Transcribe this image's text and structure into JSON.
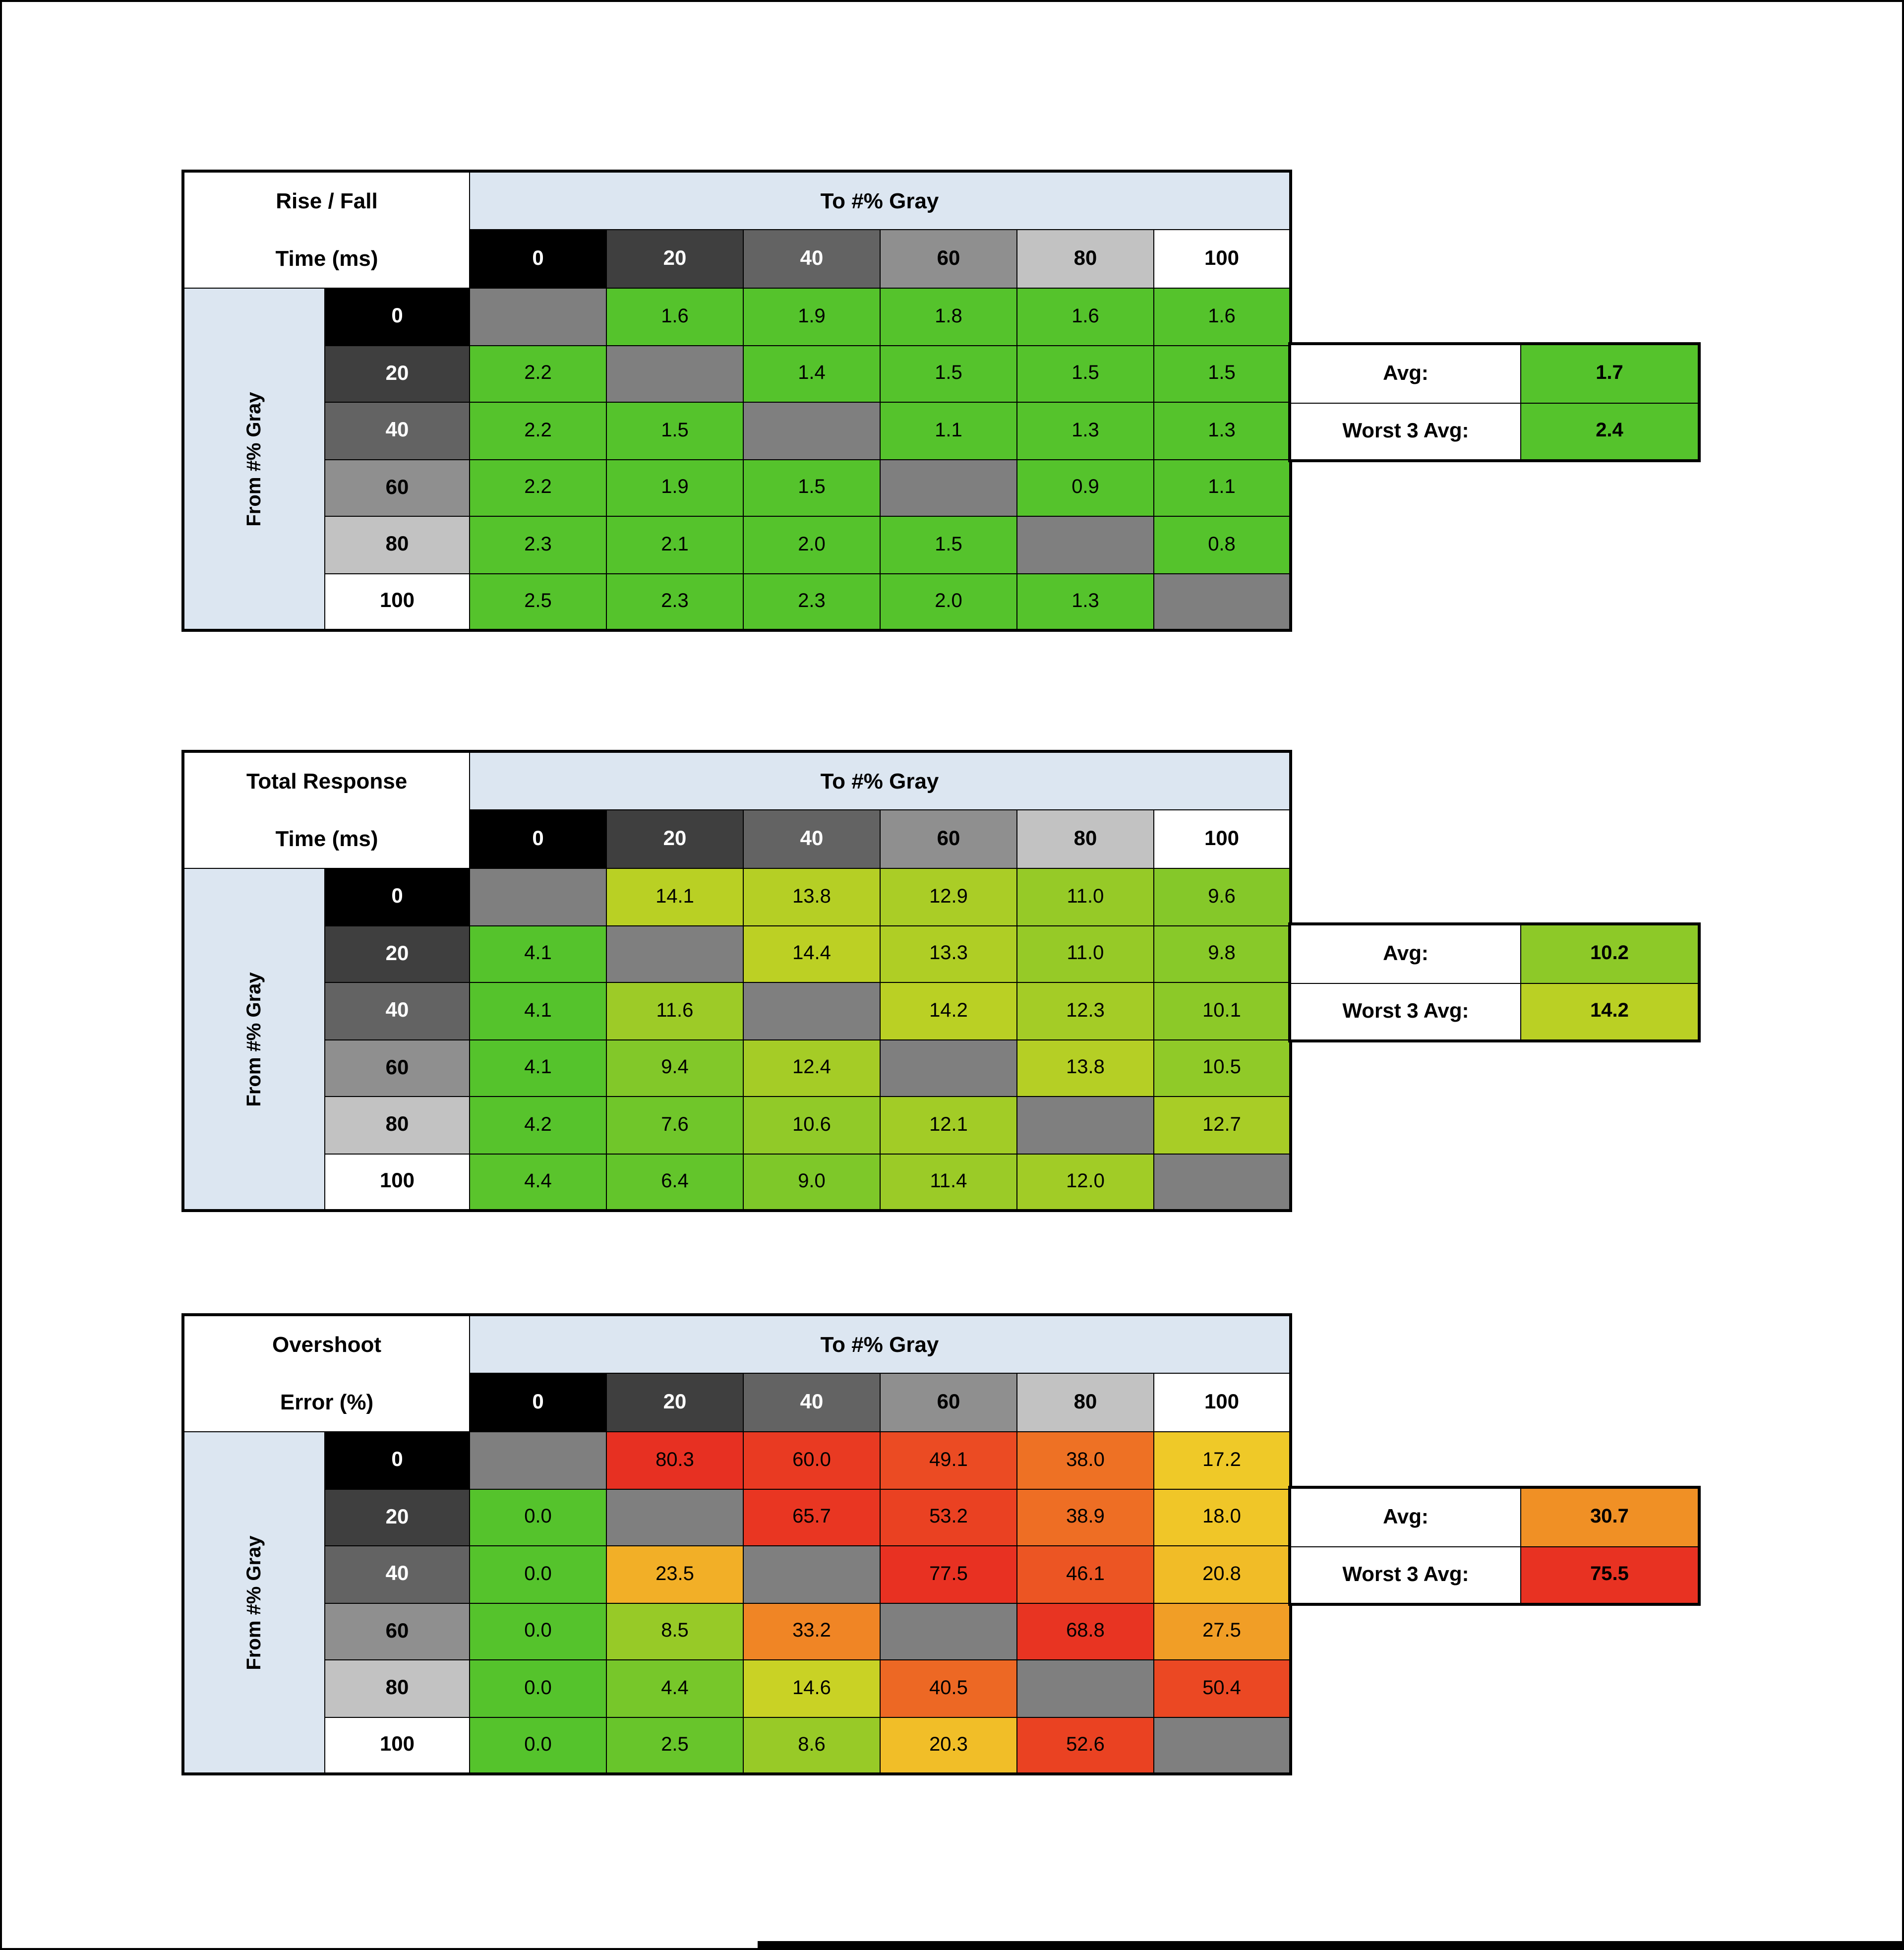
{
  "page": {
    "bg": "#ffffff",
    "border_color": "#000000"
  },
  "shared": {
    "to_label": "To #% Gray",
    "from_label": "From #% Gray",
    "band_bg": "#dce6f1",
    "diag_bg": "#7f7f7f",
    "levels": [
      {
        "label": "0",
        "bg": "#000000",
        "fg": "#ffffff"
      },
      {
        "label": "20",
        "bg": "#3f3f3f",
        "fg": "#ffffff"
      },
      {
        "label": "40",
        "bg": "#636363",
        "fg": "#ffffff"
      },
      {
        "label": "60",
        "bg": "#8f8f8f",
        "fg": "#000000"
      },
      {
        "label": "80",
        "bg": "#c2c2c2",
        "fg": "#000000"
      },
      {
        "label": "100",
        "bg": "#ffffff",
        "fg": "#000000"
      }
    ]
  },
  "chart_data": [
    {
      "type": "heatmap",
      "title": "Rise / Fall Time (ms)",
      "title_lines": [
        "Rise / Fall",
        "Time (ms)"
      ],
      "x_label": "To #% Gray",
      "y_label": "From #% Gray",
      "x_ticks": [
        "0",
        "20",
        "40",
        "60",
        "80",
        "100"
      ],
      "y_ticks": [
        "0",
        "20",
        "40",
        "60",
        "80",
        "100"
      ],
      "rows": [
        [
          null,
          {
            "v": "1.6",
            "c": "#55c32c"
          },
          {
            "v": "1.9",
            "c": "#55c32c"
          },
          {
            "v": "1.8",
            "c": "#55c32c"
          },
          {
            "v": "1.6",
            "c": "#55c32c"
          },
          {
            "v": "1.6",
            "c": "#55c32c"
          }
        ],
        [
          {
            "v": "2.2",
            "c": "#55c32c"
          },
          null,
          {
            "v": "1.4",
            "c": "#55c32c"
          },
          {
            "v": "1.5",
            "c": "#55c32c"
          },
          {
            "v": "1.5",
            "c": "#55c32c"
          },
          {
            "v": "1.5",
            "c": "#55c32c"
          }
        ],
        [
          {
            "v": "2.2",
            "c": "#55c32c"
          },
          {
            "v": "1.5",
            "c": "#55c32c"
          },
          null,
          {
            "v": "1.1",
            "c": "#55c32c"
          },
          {
            "v": "1.3",
            "c": "#55c32c"
          },
          {
            "v": "1.3",
            "c": "#55c32c"
          }
        ],
        [
          {
            "v": "2.2",
            "c": "#55c32c"
          },
          {
            "v": "1.9",
            "c": "#55c32c"
          },
          {
            "v": "1.5",
            "c": "#55c32c"
          },
          null,
          {
            "v": "0.9",
            "c": "#55c32c"
          },
          {
            "v": "1.1",
            "c": "#55c32c"
          }
        ],
        [
          {
            "v": "2.3",
            "c": "#55c32c"
          },
          {
            "v": "2.1",
            "c": "#55c32c"
          },
          {
            "v": "2.0",
            "c": "#55c32c"
          },
          {
            "v": "1.5",
            "c": "#55c32c"
          },
          null,
          {
            "v": "0.8",
            "c": "#55c32c"
          }
        ],
        [
          {
            "v": "2.5",
            "c": "#55c32c"
          },
          {
            "v": "2.3",
            "c": "#55c32c"
          },
          {
            "v": "2.3",
            "c": "#55c32c"
          },
          {
            "v": "2.0",
            "c": "#55c32c"
          },
          {
            "v": "1.3",
            "c": "#55c32c"
          },
          null
        ]
      ],
      "avg": {
        "label": "Avg:",
        "v": "1.7",
        "c": "#55c32c"
      },
      "worst3": {
        "label": "Worst 3 Avg:",
        "v": "2.4",
        "c": "#55c32c"
      }
    },
    {
      "type": "heatmap",
      "title": "Total Response Time (ms)",
      "title_lines": [
        "Total Response",
        "Time (ms)"
      ],
      "x_label": "To #% Gray",
      "y_label": "From #% Gray",
      "x_ticks": [
        "0",
        "20",
        "40",
        "60",
        "80",
        "100"
      ],
      "y_ticks": [
        "0",
        "20",
        "40",
        "60",
        "80",
        "100"
      ],
      "rows": [
        [
          null,
          {
            "v": "14.1",
            "c": "#b9d024"
          },
          {
            "v": "13.8",
            "c": "#b5cf25"
          },
          {
            "v": "12.9",
            "c": "#aacd26"
          },
          {
            "v": "11.0",
            "c": "#96ca27"
          },
          {
            "v": "9.6",
            "c": "#85c829"
          }
        ],
        [
          {
            "v": "4.1",
            "c": "#55c32c"
          },
          null,
          {
            "v": "14.4",
            "c": "#bcd024"
          },
          {
            "v": "13.3",
            "c": "#afce25"
          },
          {
            "v": "11.0",
            "c": "#96ca27"
          },
          {
            "v": "9.8",
            "c": "#88c929"
          }
        ],
        [
          {
            "v": "4.1",
            "c": "#55c32c"
          },
          {
            "v": "11.6",
            "c": "#9dcb27"
          },
          null,
          {
            "v": "14.2",
            "c": "#bad024"
          },
          {
            "v": "12.3",
            "c": "#a4cc26"
          },
          {
            "v": "10.1",
            "c": "#8cc928"
          }
        ],
        [
          {
            "v": "4.1",
            "c": "#55c32c"
          },
          {
            "v": "9.4",
            "c": "#82c829"
          },
          {
            "v": "12.4",
            "c": "#a5cc26"
          },
          null,
          {
            "v": "13.8",
            "c": "#b5cf25"
          },
          {
            "v": "10.5",
            "c": "#90ca28"
          }
        ],
        [
          {
            "v": "4.2",
            "c": "#57c32c"
          },
          {
            "v": "7.6",
            "c": "#70c62a"
          },
          {
            "v": "10.6",
            "c": "#91ca28"
          },
          {
            "v": "12.1",
            "c": "#a2cc26"
          },
          null,
          {
            "v": "12.7",
            "c": "#a8cd26"
          }
        ],
        [
          {
            "v": "4.4",
            "c": "#5ac42c"
          },
          {
            "v": "6.4",
            "c": "#63c52b"
          },
          {
            "v": "9.0",
            "c": "#7ec829"
          },
          {
            "v": "11.4",
            "c": "#9bcb27"
          },
          {
            "v": "12.0",
            "c": "#a1cc26"
          },
          null
        ]
      ],
      "avg": {
        "label": "Avg:",
        "v": "10.2",
        "c": "#8dc928"
      },
      "worst3": {
        "label": "Worst 3 Avg:",
        "v": "14.2",
        "c": "#bad024"
      }
    },
    {
      "type": "heatmap",
      "title": "Overshoot Error (%)",
      "title_lines": [
        "Overshoot",
        "Error (%)"
      ],
      "x_label": "To #% Gray",
      "y_label": "From #% Gray",
      "x_ticks": [
        "0",
        "20",
        "40",
        "60",
        "80",
        "100"
      ],
      "y_ticks": [
        "0",
        "20",
        "40",
        "60",
        "80",
        "100"
      ],
      "rows": [
        [
          null,
          {
            "v": "80.3",
            "c": "#e73022"
          },
          {
            "v": "60.0",
            "c": "#e93a22"
          },
          {
            "v": "49.1",
            "c": "#eb4b23"
          },
          {
            "v": "38.0",
            "c": "#ee7124"
          },
          {
            "v": "17.2",
            "c": "#efc928"
          }
        ],
        [
          {
            "v": "0.0",
            "c": "#55c32c"
          },
          null,
          {
            "v": "65.7",
            "c": "#e93622"
          },
          {
            "v": "53.2",
            "c": "#ea4122"
          },
          {
            "v": "38.9",
            "c": "#ee6e24"
          },
          {
            "v": "18.0",
            "c": "#f0c628"
          }
        ],
        [
          {
            "v": "0.0",
            "c": "#55c32c"
          },
          {
            "v": "23.5",
            "c": "#f2af27"
          },
          null,
          {
            "v": "77.5",
            "c": "#e83122"
          },
          {
            "v": "46.1",
            "c": "#ec5523"
          },
          {
            "v": "20.8",
            "c": "#f1bc27"
          }
        ],
        [
          {
            "v": "0.0",
            "c": "#55c32c"
          },
          {
            "v": "8.5",
            "c": "#97ca27"
          },
          {
            "v": "33.2",
            "c": "#f08525"
          },
          null,
          {
            "v": "68.8",
            "c": "#e83422"
          },
          {
            "v": "27.5",
            "c": "#f19e26"
          }
        ],
        [
          {
            "v": "0.0",
            "c": "#55c32c"
          },
          {
            "v": "4.4",
            "c": "#77c72a"
          },
          {
            "v": "14.6",
            "c": "#c9d225"
          },
          {
            "v": "40.5",
            "c": "#ed6824"
          },
          null,
          {
            "v": "50.4",
            "c": "#eb4823"
          }
        ],
        [
          {
            "v": "0.0",
            "c": "#55c32c"
          },
          {
            "v": "2.5",
            "c": "#68c52b"
          },
          {
            "v": "8.6",
            "c": "#98ca27"
          },
          {
            "v": "20.3",
            "c": "#f1be28"
          },
          {
            "v": "52.6",
            "c": "#ea4222"
          },
          null
        ]
      ],
      "avg": {
        "label": "Avg:",
        "v": "30.7",
        "c": "#f09025"
      },
      "worst3": {
        "label": "Worst 3 Avg:",
        "v": "75.5",
        "c": "#e83222"
      }
    }
  ]
}
